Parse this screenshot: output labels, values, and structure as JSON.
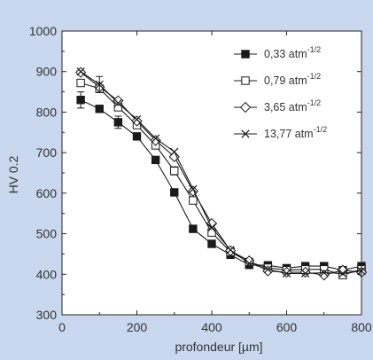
{
  "chart_data": {
    "type": "line",
    "title": "",
    "xlabel": "profondeur [µm]",
    "ylabel": "HV 0.2",
    "xlim": [
      0,
      800
    ],
    "ylim": [
      300,
      1000
    ],
    "xticks": [
      0,
      200,
      400,
      600,
      800
    ],
    "yticks": [
      300,
      400,
      500,
      600,
      700,
      800,
      900,
      1000
    ],
    "xtick_labels": [
      "0",
      "200",
      "400",
      "600",
      "800"
    ],
    "ytick_labels": [
      "300",
      "400",
      "500",
      "600",
      "700",
      "800",
      "900",
      "1000"
    ],
    "grid": false,
    "legend_position": "top-right",
    "x": [
      50,
      100,
      150,
      200,
      250,
      300,
      350,
      400,
      450,
      500,
      550,
      600,
      650,
      700,
      750,
      800
    ],
    "series": [
      {
        "name": "0,33 atm",
        "name_sup": "-1/2",
        "marker": "square-filled",
        "values": [
          830,
          808,
          775,
          740,
          682,
          602,
          512,
          475,
          448,
          423,
          422,
          415,
          420,
          420,
          410,
          420
        ],
        "errors": [
          20,
          0,
          15,
          0,
          0,
          0,
          0,
          0,
          0,
          0,
          0,
          0,
          0,
          0,
          0,
          0
        ]
      },
      {
        "name": "0,79 atm",
        "name_sup": "-1/2",
        "marker": "square-open",
        "values": [
          872,
          858,
          812,
          768,
          718,
          655,
          582,
          503,
          455,
          430,
          416,
          410,
          412,
          412,
          398,
          412
        ],
        "errors": [
          0,
          0,
          0,
          0,
          0,
          10,
          0,
          0,
          0,
          0,
          0,
          0,
          0,
          0,
          0,
          0
        ]
      },
      {
        "name": "3,65 atm",
        "name_sup": "-1/2",
        "marker": "diamond-open",
        "values": [
          898,
          862,
          828,
          778,
          730,
          690,
          605,
          525,
          458,
          433,
          408,
          405,
          405,
          398,
          410,
          405
        ],
        "errors": [
          0,
          0,
          0,
          0,
          0,
          0,
          0,
          0,
          0,
          0,
          0,
          0,
          0,
          0,
          0,
          0
        ]
      },
      {
        "name": "13,77 atm",
        "name_sup": "-1/2",
        "marker": "x",
        "values": [
          900,
          868,
          822,
          782,
          735,
          702,
          610,
          515,
          460,
          427,
          412,
          402,
          402,
          404,
          402,
          408
        ],
        "errors": [
          0,
          20,
          0,
          0,
          0,
          0,
          0,
          0,
          0,
          0,
          0,
          0,
          0,
          0,
          0,
          0
        ]
      }
    ]
  }
}
